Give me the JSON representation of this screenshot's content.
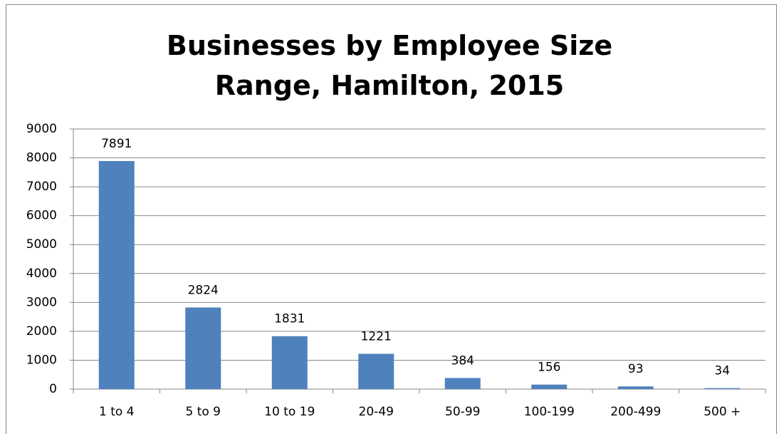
{
  "chart_data": {
    "type": "bar",
    "title": "Businesses by Employee Size Range, Hamilton, 2015",
    "categories": [
      "1 to 4",
      "5 to 9",
      "10 to 19",
      "20-49",
      "50-99",
      "100-199",
      "200-499",
      "500 +"
    ],
    "values": [
      7891,
      2824,
      1831,
      1221,
      384,
      156,
      93,
      34
    ],
    "color": "#4f81bd",
    "ylim": [
      0,
      9000
    ],
    "yticks": [
      0,
      1000,
      2000,
      3000,
      4000,
      5000,
      6000,
      7000,
      8000,
      9000
    ],
    "grid": true,
    "data_labels": true
  }
}
